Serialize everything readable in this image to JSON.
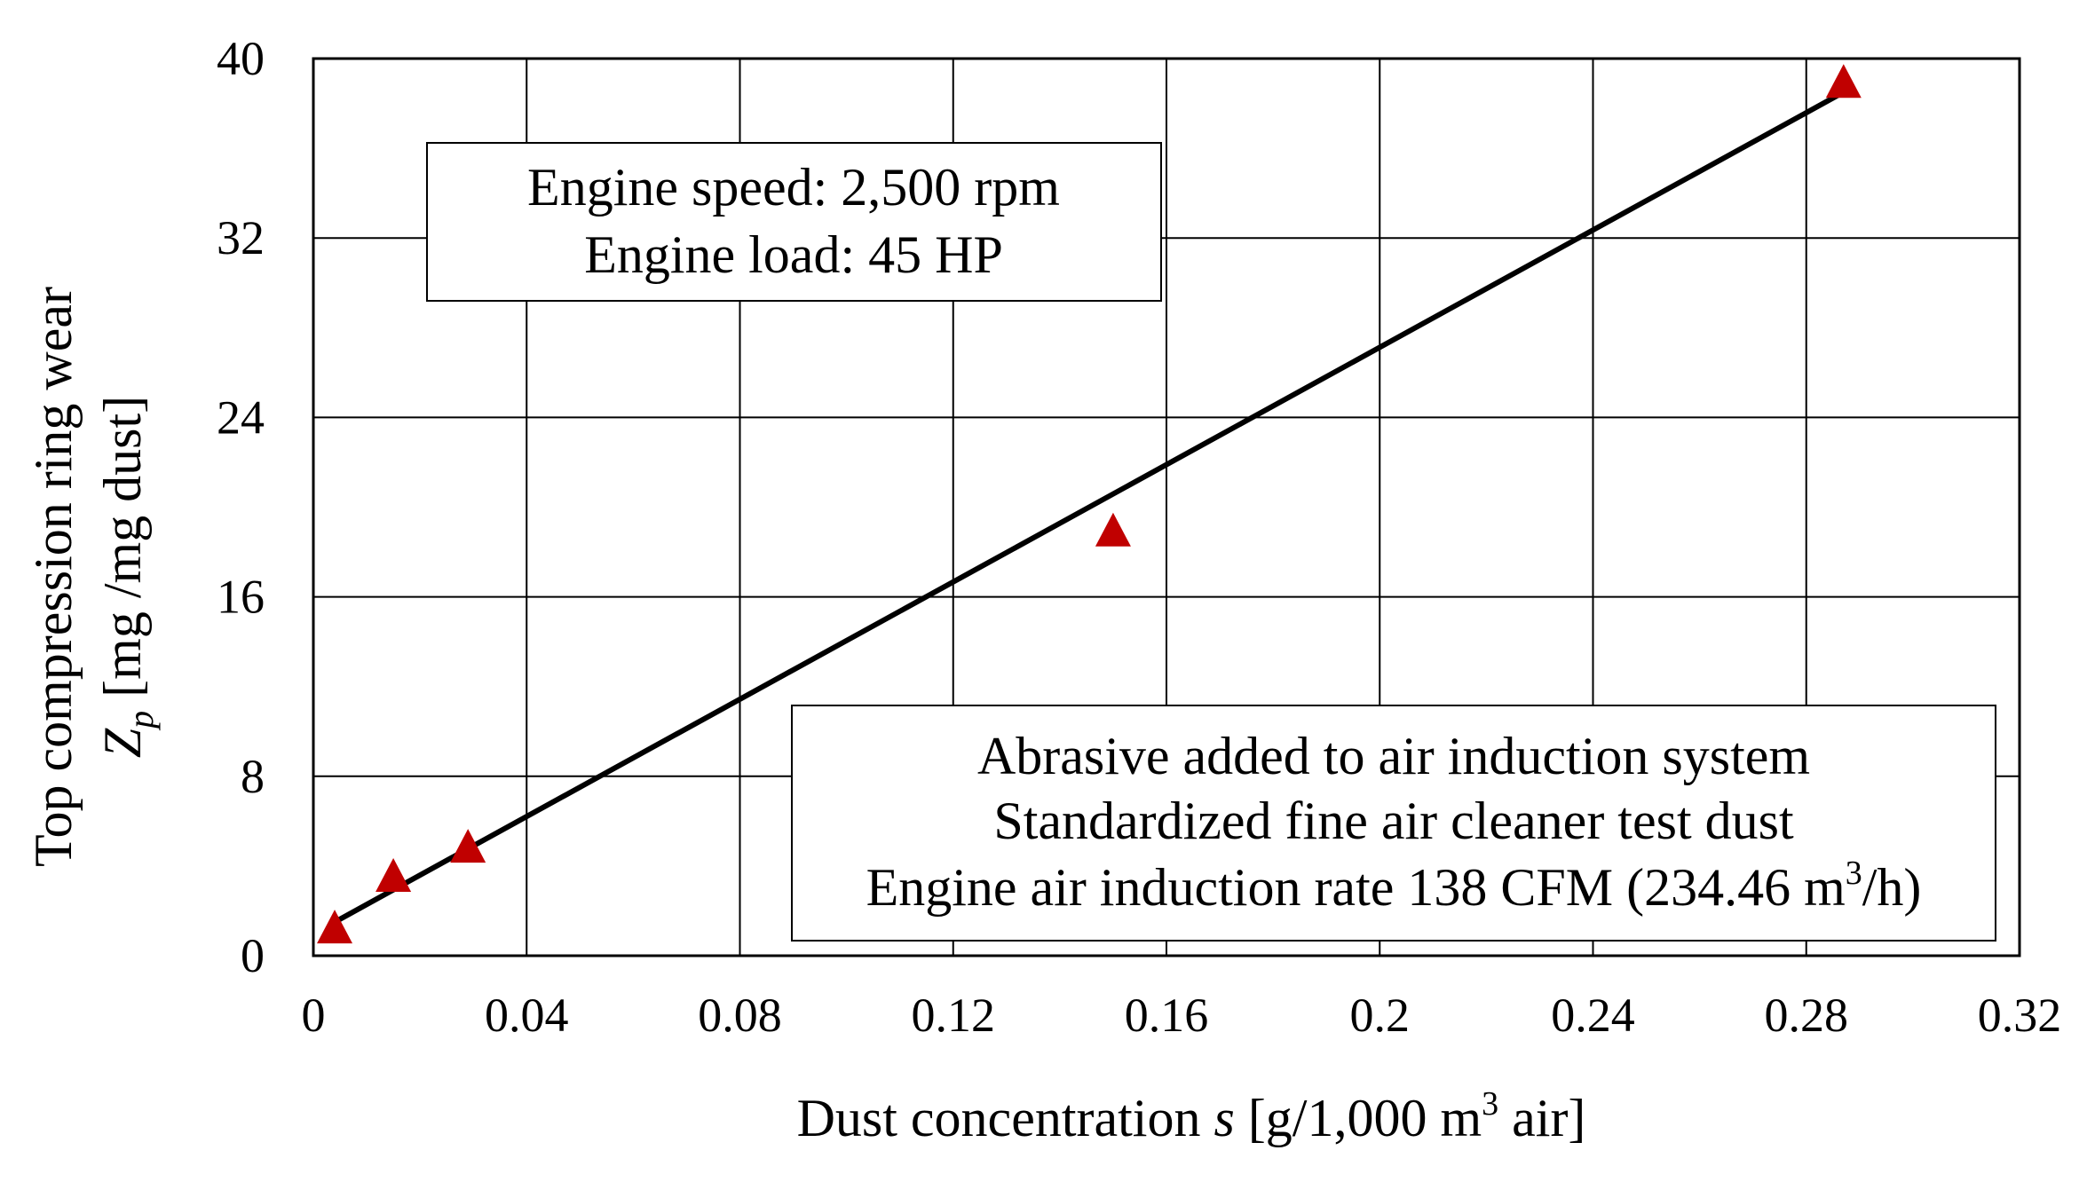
{
  "chart_data": {
    "type": "scatter",
    "x_title": {
      "prefix": "Dust concentration ",
      "var": "s",
      "unit_a": " [g/1,000 m",
      "unit_sup": "3",
      "unit_b": " air]"
    },
    "y_title": {
      "line1": "Top compression ring wear",
      "var": "Z",
      "var_sub": "p",
      "unit": " [mg /mg dust]"
    },
    "xlim": [
      0,
      0.32
    ],
    "ylim": [
      0,
      40
    ],
    "x_ticks": [
      "0",
      "0.04",
      "0.08",
      "0.12",
      "0.16",
      "0.2",
      "0.24",
      "0.28",
      "0.32"
    ],
    "y_ticks": [
      "0",
      "8",
      "16",
      "24",
      "32",
      "40"
    ],
    "grid": true,
    "series": [
      {
        "marker": "triangle",
        "color": "#c00000",
        "points": [
          {
            "x": 0.004,
            "y": 1.3
          },
          {
            "x": 0.015,
            "y": 3.6
          },
          {
            "x": 0.029,
            "y": 4.9
          },
          {
            "x": 0.15,
            "y": 19.0
          },
          {
            "x": 0.287,
            "y": 39.0
          }
        ]
      }
    ],
    "trendline": {
      "color": "#000000",
      "x": [
        0.004,
        0.287
      ],
      "y": [
        1.5,
        38.5
      ]
    },
    "annotations": {
      "top": [
        "Engine speed: 2,500 rpm",
        "Engine load: 45 HP"
      ],
      "bottom_line1": "Abrasive added to air induction system",
      "bottom_line2": "Standardized fine air cleaner test dust",
      "bottom_line3_a": "Engine air induction rate 138 CFM (234.46 m",
      "bottom_line3_sup": "3",
      "bottom_line3_b": "/h)"
    }
  }
}
